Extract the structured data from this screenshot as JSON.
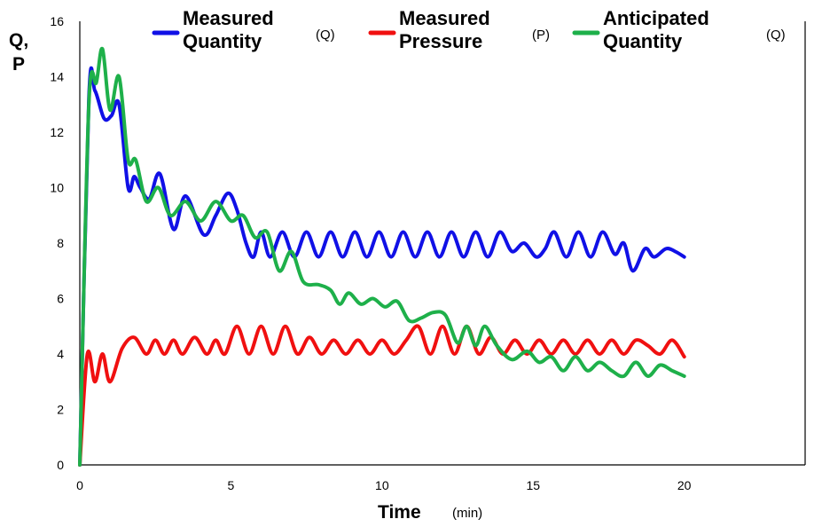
{
  "chart_data": {
    "type": "line",
    "xlabel": "Time",
    "xlabel_unit": "(min)",
    "ylabel_line1": "Q,",
    "ylabel_line2": "P",
    "xlim": [
      0,
      24
    ],
    "ylim": [
      0,
      16
    ],
    "x_ticks": [
      0,
      5,
      10,
      15,
      20
    ],
    "y_ticks": [
      0,
      2,
      4,
      6,
      8,
      10,
      12,
      14,
      16
    ],
    "grid": false,
    "legend_position": "top",
    "series": [
      {
        "name_line1": "Measured",
        "name_line2": "Quantity",
        "unit": "(Q)",
        "color": "#1010e6",
        "points": [
          [
            0,
            0
          ],
          [
            0.3,
            13.2
          ],
          [
            0.5,
            13.5
          ],
          [
            0.8,
            12.5
          ],
          [
            1.05,
            12.6
          ],
          [
            1.3,
            13
          ],
          [
            1.6,
            10
          ],
          [
            1.8,
            10.4
          ],
          [
            2.0,
            10
          ],
          [
            2.3,
            9.6
          ],
          [
            2.65,
            10.5
          ],
          [
            3.1,
            8.5
          ],
          [
            3.5,
            9.7
          ],
          [
            4.1,
            8.3
          ],
          [
            4.5,
            9
          ],
          [
            4.9,
            9.8
          ],
          [
            5.2,
            9.2
          ],
          [
            5.5,
            8
          ],
          [
            5.75,
            7.5
          ],
          [
            6.0,
            8.4
          ],
          [
            6.3,
            7.5
          ],
          [
            6.7,
            8.4
          ],
          [
            7.1,
            7.5
          ],
          [
            7.5,
            8.4
          ],
          [
            7.9,
            7.5
          ],
          [
            8.3,
            8.4
          ],
          [
            8.7,
            7.5
          ],
          [
            9.1,
            8.4
          ],
          [
            9.5,
            7.5
          ],
          [
            9.9,
            8.4
          ],
          [
            10.3,
            7.5
          ],
          [
            10.7,
            8.4
          ],
          [
            11.1,
            7.5
          ],
          [
            11.5,
            8.4
          ],
          [
            11.9,
            7.5
          ],
          [
            12.3,
            8.4
          ],
          [
            12.7,
            7.5
          ],
          [
            13.1,
            8.4
          ],
          [
            13.5,
            7.5
          ],
          [
            13.9,
            8.4
          ],
          [
            14.3,
            7.7
          ],
          [
            14.7,
            8.0
          ],
          [
            15.1,
            7.5
          ],
          [
            15.4,
            7.8
          ],
          [
            15.7,
            8.4
          ],
          [
            16.1,
            7.5
          ],
          [
            16.5,
            8.4
          ],
          [
            16.9,
            7.5
          ],
          [
            17.3,
            8.4
          ],
          [
            17.7,
            7.6
          ],
          [
            18.0,
            8.0
          ],
          [
            18.3,
            7.0
          ],
          [
            18.7,
            7.8
          ],
          [
            19.0,
            7.5
          ],
          [
            19.4,
            7.8
          ],
          [
            19.7,
            7.7
          ],
          [
            20,
            7.5
          ]
        ]
      },
      {
        "name_line1": "Measured",
        "name_line2": "Pressure",
        "unit": "(P)",
        "color": "#f01010",
        "points": [
          [
            0,
            0
          ],
          [
            0.25,
            4.0
          ],
          [
            0.5,
            3.0
          ],
          [
            0.75,
            4.0
          ],
          [
            1.0,
            3.0
          ],
          [
            1.4,
            4.2
          ],
          [
            1.8,
            4.6
          ],
          [
            2.2,
            4.0
          ],
          [
            2.5,
            4.5
          ],
          [
            2.8,
            4.0
          ],
          [
            3.1,
            4.5
          ],
          [
            3.4,
            4.0
          ],
          [
            3.8,
            4.6
          ],
          [
            4.2,
            4.0
          ],
          [
            4.5,
            4.5
          ],
          [
            4.8,
            4.0
          ],
          [
            5.2,
            5.0
          ],
          [
            5.6,
            4.0
          ],
          [
            6.0,
            5.0
          ],
          [
            6.4,
            4.0
          ],
          [
            6.8,
            5.0
          ],
          [
            7.2,
            4.0
          ],
          [
            7.6,
            4.6
          ],
          [
            8.0,
            4.0
          ],
          [
            8.4,
            4.5
          ],
          [
            8.8,
            4.0
          ],
          [
            9.2,
            4.5
          ],
          [
            9.6,
            4.0
          ],
          [
            10.0,
            4.5
          ],
          [
            10.4,
            4.0
          ],
          [
            10.8,
            4.5
          ],
          [
            11.2,
            5.0
          ],
          [
            11.6,
            4.0
          ],
          [
            12.0,
            5.0
          ],
          [
            12.4,
            4.0
          ],
          [
            12.8,
            5.0
          ],
          [
            13.2,
            4.0
          ],
          [
            13.6,
            4.6
          ],
          [
            14.0,
            4.0
          ],
          [
            14.4,
            4.5
          ],
          [
            14.8,
            4.0
          ],
          [
            15.2,
            4.5
          ],
          [
            15.6,
            4.0
          ],
          [
            16.0,
            4.5
          ],
          [
            16.4,
            4.0
          ],
          [
            16.8,
            4.5
          ],
          [
            17.2,
            4.0
          ],
          [
            17.6,
            4.5
          ],
          [
            18.0,
            4.0
          ],
          [
            18.4,
            4.5
          ],
          [
            18.8,
            4.3
          ],
          [
            19.2,
            4.0
          ],
          [
            19.6,
            4.5
          ],
          [
            20,
            3.9
          ]
        ]
      },
      {
        "name_line1": "Anticipated",
        "name_line2": "Quantity",
        "unit": "(Q)",
        "color": "#1eb04a",
        "points": [
          [
            0,
            0
          ],
          [
            0.3,
            13
          ],
          [
            0.55,
            13.8
          ],
          [
            0.75,
            15
          ],
          [
            1.0,
            12.8
          ],
          [
            1.3,
            14
          ],
          [
            1.6,
            11
          ],
          [
            1.85,
            11
          ],
          [
            2.2,
            9.5
          ],
          [
            2.6,
            10
          ],
          [
            3.0,
            9
          ],
          [
            3.5,
            9.5
          ],
          [
            4.0,
            8.8
          ],
          [
            4.5,
            9.5
          ],
          [
            5.0,
            8.8
          ],
          [
            5.4,
            9
          ],
          [
            5.8,
            8.2
          ],
          [
            6.2,
            8.4
          ],
          [
            6.6,
            7.0
          ],
          [
            7.0,
            7.7
          ],
          [
            7.4,
            6.6
          ],
          [
            7.9,
            6.5
          ],
          [
            8.3,
            6.3
          ],
          [
            8.6,
            5.8
          ],
          [
            8.9,
            6.2
          ],
          [
            9.3,
            5.8
          ],
          [
            9.7,
            6.0
          ],
          [
            10.1,
            5.7
          ],
          [
            10.5,
            5.9
          ],
          [
            10.9,
            5.2
          ],
          [
            11.3,
            5.3
          ],
          [
            11.7,
            5.5
          ],
          [
            12.1,
            5.4
          ],
          [
            12.5,
            4.4
          ],
          [
            12.8,
            5.0
          ],
          [
            13.1,
            4.3
          ],
          [
            13.4,
            5.0
          ],
          [
            13.8,
            4.3
          ],
          [
            14.3,
            3.8
          ],
          [
            14.8,
            4.1
          ],
          [
            15.2,
            3.7
          ],
          [
            15.6,
            3.9
          ],
          [
            16.0,
            3.4
          ],
          [
            16.4,
            3.9
          ],
          [
            16.8,
            3.4
          ],
          [
            17.2,
            3.7
          ],
          [
            17.6,
            3.4
          ],
          [
            18.0,
            3.2
          ],
          [
            18.4,
            3.7
          ],
          [
            18.8,
            3.2
          ],
          [
            19.2,
            3.6
          ],
          [
            19.6,
            3.4
          ],
          [
            20,
            3.2
          ]
        ]
      }
    ]
  }
}
